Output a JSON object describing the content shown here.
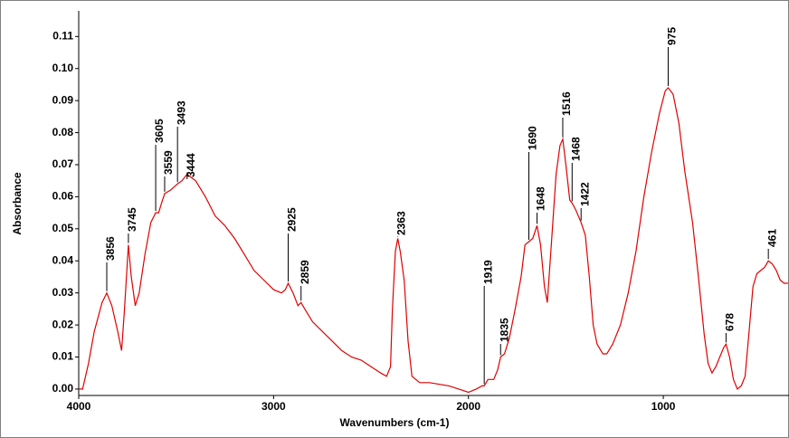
{
  "chart_data": {
    "type": "line",
    "xlabel": "Wavenumbers (cm-1)",
    "ylabel": "Absorbance",
    "xlim": [
      4000,
      355
    ],
    "ylim": [
      -0.002,
      0.118
    ],
    "xticks": [
      4000,
      3000,
      2000,
      1000
    ],
    "yticks": [
      {
        "value": 0.0,
        "label": "0.00"
      },
      {
        "value": 0.01,
        "label": "0.01"
      },
      {
        "value": 0.02,
        "label": "0.02"
      },
      {
        "value": 0.03,
        "label": "0.03"
      },
      {
        "value": 0.04,
        "label": "0.04"
      },
      {
        "value": 0.05,
        "label": "0.05"
      },
      {
        "value": 0.06,
        "label": "0.06"
      },
      {
        "value": 0.07,
        "label": "0.07"
      },
      {
        "value": 0.08,
        "label": "0.08"
      },
      {
        "value": 0.09,
        "label": "0.09"
      },
      {
        "value": 0.1,
        "label": "0.10"
      },
      {
        "value": 0.11,
        "label": "0.11"
      }
    ],
    "color": "#e00000",
    "x": [
      4000,
      3980,
      3950,
      3920,
      3880,
      3856,
      3830,
      3800,
      3780,
      3765,
      3745,
      3730,
      3710,
      3690,
      3660,
      3630,
      3605,
      3590,
      3575,
      3559,
      3530,
      3493,
      3470,
      3444,
      3400,
      3350,
      3300,
      3250,
      3200,
      3150,
      3100,
      3050,
      3000,
      2960,
      2940,
      2925,
      2900,
      2875,
      2859,
      2840,
      2800,
      2750,
      2700,
      2650,
      2600,
      2550,
      2500,
      2450,
      2420,
      2400,
      2390,
      2375,
      2363,
      2350,
      2330,
      2310,
      2290,
      2250,
      2200,
      2100,
      2050,
      2000,
      1960,
      1930,
      1919,
      1900,
      1870,
      1850,
      1835,
      1815,
      1790,
      1760,
      1730,
      1710,
      1690,
      1670,
      1648,
      1630,
      1610,
      1595,
      1575,
      1550,
      1530,
      1516,
      1500,
      1480,
      1468,
      1450,
      1422,
      1400,
      1380,
      1360,
      1340,
      1310,
      1290,
      1260,
      1220,
      1180,
      1140,
      1100,
      1060,
      1020,
      990,
      975,
      950,
      920,
      890,
      870,
      850,
      820,
      790,
      770,
      750,
      730,
      710,
      690,
      678,
      660,
      640,
      620,
      600,
      580,
      560,
      540,
      520,
      500,
      480,
      461,
      440,
      420,
      400,
      380,
      360
    ],
    "values": [
      0.0,
      0.0,
      0.008,
      0.018,
      0.027,
      0.03,
      0.026,
      0.018,
      0.012,
      0.025,
      0.045,
      0.035,
      0.026,
      0.03,
      0.042,
      0.052,
      0.055,
      0.055,
      0.058,
      0.061,
      0.062,
      0.064,
      0.065,
      0.067,
      0.065,
      0.06,
      0.054,
      0.051,
      0.047,
      0.042,
      0.037,
      0.034,
      0.031,
      0.03,
      0.031,
      0.033,
      0.03,
      0.026,
      0.027,
      0.025,
      0.021,
      0.018,
      0.015,
      0.012,
      0.01,
      0.009,
      0.007,
      0.005,
      0.004,
      0.007,
      0.025,
      0.043,
      0.047,
      0.043,
      0.034,
      0.015,
      0.004,
      0.002,
      0.002,
      0.001,
      0.0,
      -0.001,
      0.0,
      0.001,
      0.001,
      0.003,
      0.003,
      0.006,
      0.01,
      0.011,
      0.016,
      0.025,
      0.035,
      0.045,
      0.046,
      0.047,
      0.051,
      0.045,
      0.032,
      0.027,
      0.045,
      0.067,
      0.076,
      0.078,
      0.07,
      0.059,
      0.058,
      0.056,
      0.052,
      0.048,
      0.035,
      0.02,
      0.014,
      0.011,
      0.011,
      0.014,
      0.02,
      0.03,
      0.043,
      0.06,
      0.074,
      0.086,
      0.093,
      0.094,
      0.092,
      0.083,
      0.068,
      0.06,
      0.052,
      0.035,
      0.017,
      0.008,
      0.005,
      0.007,
      0.01,
      0.013,
      0.014,
      0.01,
      0.003,
      0.0,
      0.001,
      0.004,
      0.018,
      0.032,
      0.036,
      0.037,
      0.038,
      0.04,
      0.039,
      0.037,
      0.034,
      0.033,
      0.033
    ],
    "annotations": [
      {
        "x": 3856,
        "y": 0.03
      },
      {
        "x": 3745,
        "y": 0.045
      },
      {
        "x": 3605,
        "y": 0.055
      },
      {
        "x": 3559,
        "y": 0.061
      },
      {
        "x": 3493,
        "y": 0.064
      },
      {
        "x": 3444,
        "y": 0.067
      },
      {
        "x": 2925,
        "y": 0.033
      },
      {
        "x": 2859,
        "y": 0.027
      },
      {
        "x": 2363,
        "y": 0.047
      },
      {
        "x": 1919,
        "y": 0.001
      },
      {
        "x": 1835,
        "y": 0.01
      },
      {
        "x": 1690,
        "y": 0.046
      },
      {
        "x": 1648,
        "y": 0.051
      },
      {
        "x": 1516,
        "y": 0.078
      },
      {
        "x": 1468,
        "y": 0.058
      },
      {
        "x": 1422,
        "y": 0.052
      },
      {
        "x": 975,
        "y": 0.094
      },
      {
        "x": 678,
        "y": 0.014
      },
      {
        "x": 461,
        "y": 0.04
      }
    ]
  }
}
